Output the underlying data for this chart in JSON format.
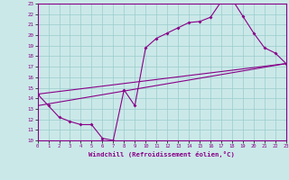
{
  "title": "",
  "xlabel": "Windchill (Refroidissement éolien,°C)",
  "ylabel": "",
  "bg_color": "#cbe8e8",
  "line_color": "#880088",
  "grid_color": "#99cccc",
  "x_min": 0,
  "x_max": 23,
  "y_min": 10,
  "y_max": 23,
  "line1_x": [
    0,
    1,
    2,
    3,
    4,
    5,
    6,
    7,
    8,
    9,
    10,
    11,
    12,
    13,
    14,
    15,
    16,
    17,
    18,
    19,
    20,
    21,
    22,
    23
  ],
  "line1_y": [
    14.4,
    13.3,
    12.2,
    11.8,
    11.5,
    11.5,
    10.2,
    10.0,
    14.8,
    13.3,
    18.8,
    19.7,
    20.2,
    20.7,
    21.2,
    21.3,
    21.7,
    23.2,
    23.4,
    21.8,
    20.2,
    18.8,
    18.3,
    17.3
  ],
  "line2_x": [
    0,
    23
  ],
  "line2_y": [
    14.4,
    17.3
  ],
  "line3_x": [
    0,
    23
  ],
  "line3_y": [
    13.3,
    17.3
  ]
}
